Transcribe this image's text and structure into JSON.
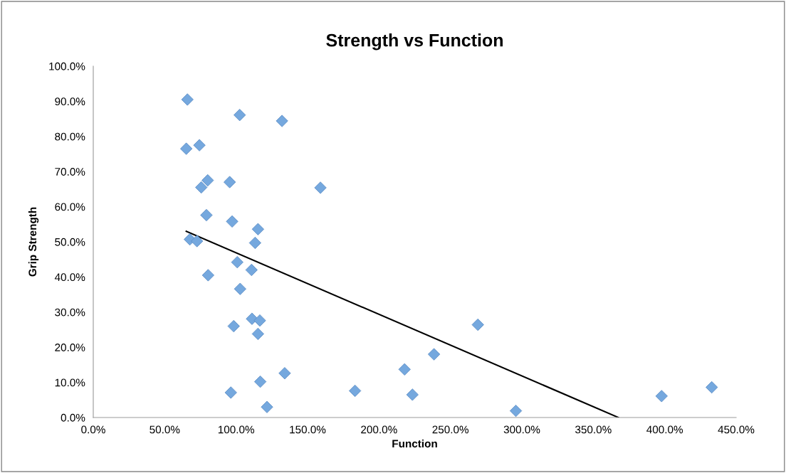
{
  "chart_data": {
    "type": "scatter",
    "title": "Strength vs Function",
    "xlabel": "Function",
    "ylabel": "Grip Strength",
    "xlim": [
      0,
      450
    ],
    "ylim": [
      0,
      100
    ],
    "xticks": [
      {
        "value": 0,
        "label": "0.0%"
      },
      {
        "value": 50,
        "label": "50.0%"
      },
      {
        "value": 100,
        "label": "100.0%"
      },
      {
        "value": 150,
        "label": "150.0%"
      },
      {
        "value": 200,
        "label": "200.0%"
      },
      {
        "value": 250,
        "label": "250.0%"
      },
      {
        "value": 300,
        "label": "300.0%"
      },
      {
        "value": 350,
        "label": "350.0%"
      },
      {
        "value": 400,
        "label": "400.0%"
      },
      {
        "value": 450,
        "label": "450.0%"
      }
    ],
    "yticks": [
      {
        "value": 0,
        "label": "0.0%"
      },
      {
        "value": 10,
        "label": "10.0%"
      },
      {
        "value": 20,
        "label": "20.0%"
      },
      {
        "value": 30,
        "label": "30.0%"
      },
      {
        "value": 40,
        "label": "40.0%"
      },
      {
        "value": 50,
        "label": "50.0%"
      },
      {
        "value": 60,
        "label": "60.0%"
      },
      {
        "value": 70,
        "label": "70.0%"
      },
      {
        "value": 80,
        "label": "80.0%"
      },
      {
        "value": 90,
        "label": "90.0%"
      },
      {
        "value": 100,
        "label": "100.0%"
      }
    ],
    "grid": false,
    "legend": false,
    "series": [
      {
        "marker": "diamond",
        "color": "#75a8de",
        "x": [
          65.9,
          102.5,
          132.1,
          65.1,
          74.3,
          80.1,
          75.6,
          95.5,
          159.0,
          79.2,
          97.2,
          115.3,
          67.6,
          72.6,
          113.3,
          100.8,
          110.8,
          80.4,
          102.8,
          111.1,
          116.6,
          98.3,
          115.3,
          134.0,
          116.9,
          96.3,
          121.6,
          269.2,
          238.5,
          217.9,
          183.2,
          223.4,
          295.8,
          397.8,
          432.9
        ],
        "values": [
          90.5,
          86.1,
          84.4,
          76.5,
          77.5,
          67.5,
          65.5,
          67.0,
          65.4,
          57.6,
          55.8,
          53.6,
          50.7,
          50.2,
          49.7,
          44.2,
          42.0,
          40.5,
          36.6,
          28.1,
          27.6,
          26.0,
          23.8,
          12.6,
          10.2,
          7.1,
          3.0,
          26.4,
          18.0,
          13.7,
          7.6,
          6.5,
          1.9,
          6.1,
          8.6
        ]
      },
      {
        "type": "line",
        "marker": "none",
        "color": "#000000",
        "x": [
          65.1,
          367.6
        ],
        "values": [
          53.0,
          0
        ]
      }
    ]
  }
}
